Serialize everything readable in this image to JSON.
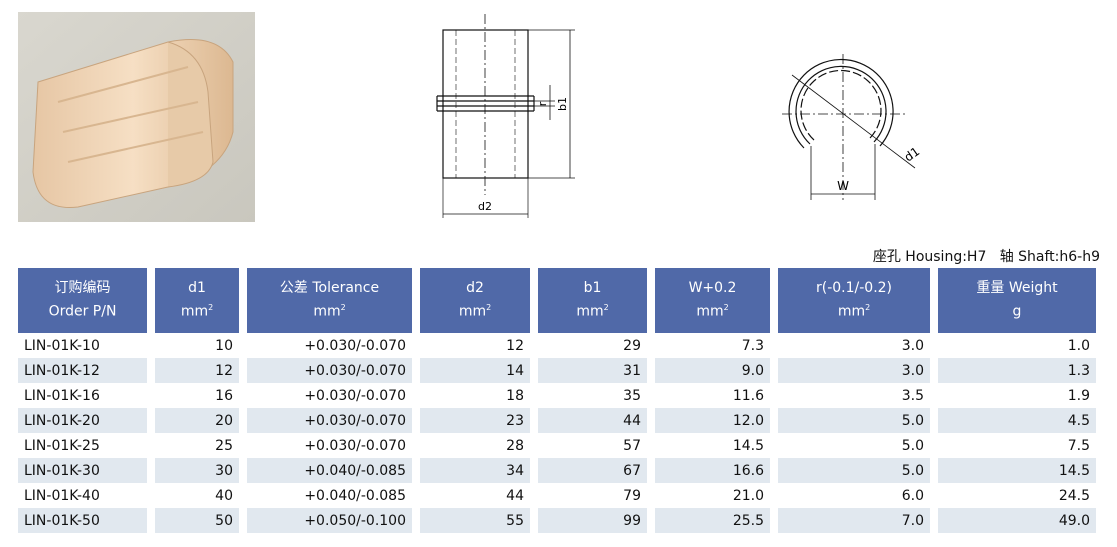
{
  "diagram_labels": {
    "b1": "b1",
    "r": "r",
    "d2": "d2",
    "d1": "d1",
    "W": "W"
  },
  "tolerance_note": "座孔 Housing:H7   轴 Shaft:h6-h9",
  "table": {
    "headers": [
      {
        "line1": "订购编码",
        "line2": "Order P/N",
        "sup": ""
      },
      {
        "line1": "d1",
        "line2": "mm",
        "sup": "2"
      },
      {
        "line1": "公差 Tolerance",
        "line2": "mm",
        "sup": "2"
      },
      {
        "line1": "d2",
        "line2": "mm",
        "sup": "2"
      },
      {
        "line1": "b1",
        "line2": "mm",
        "sup": "2"
      },
      {
        "line1": "W+0.2",
        "line2": "mm",
        "sup": "2"
      },
      {
        "line1": "r(-0.1/-0.2)",
        "line2": "mm",
        "sup": "2"
      },
      {
        "line1": "重量 Weight",
        "line2": "g",
        "sup": ""
      }
    ],
    "rows": [
      [
        "LIN-01K-10",
        "10",
        "+0.030/-0.070",
        "12",
        "29",
        "7.3",
        "3.0",
        "1.0"
      ],
      [
        "LIN-01K-12",
        "12",
        "+0.030/-0.070",
        "14",
        "31",
        "9.0",
        "3.0",
        "1.3"
      ],
      [
        "LIN-01K-16",
        "16",
        "+0.030/-0.070",
        "18",
        "35",
        "11.6",
        "3.5",
        "1.9"
      ],
      [
        "LIN-01K-20",
        "20",
        "+0.030/-0.070",
        "23",
        "44",
        "12.0",
        "5.0",
        "4.5"
      ],
      [
        "LIN-01K-25",
        "25",
        "+0.030/-0.070",
        "28",
        "57",
        "14.5",
        "5.0",
        "7.5"
      ],
      [
        "LIN-01K-30",
        "30",
        "+0.040/-0.085",
        "34",
        "67",
        "16.6",
        "5.0",
        "14.5"
      ],
      [
        "LIN-01K-40",
        "40",
        "+0.040/-0.085",
        "44",
        "79",
        "21.0",
        "6.0",
        "24.5"
      ],
      [
        "LIN-01K-50",
        "50",
        "+0.050/-0.100",
        "55",
        "99",
        "25.5",
        "7.0",
        "49.0"
      ]
    ]
  },
  "colors": {
    "header_bg": "#5069a8",
    "alt_row": "#e1e8ef"
  }
}
